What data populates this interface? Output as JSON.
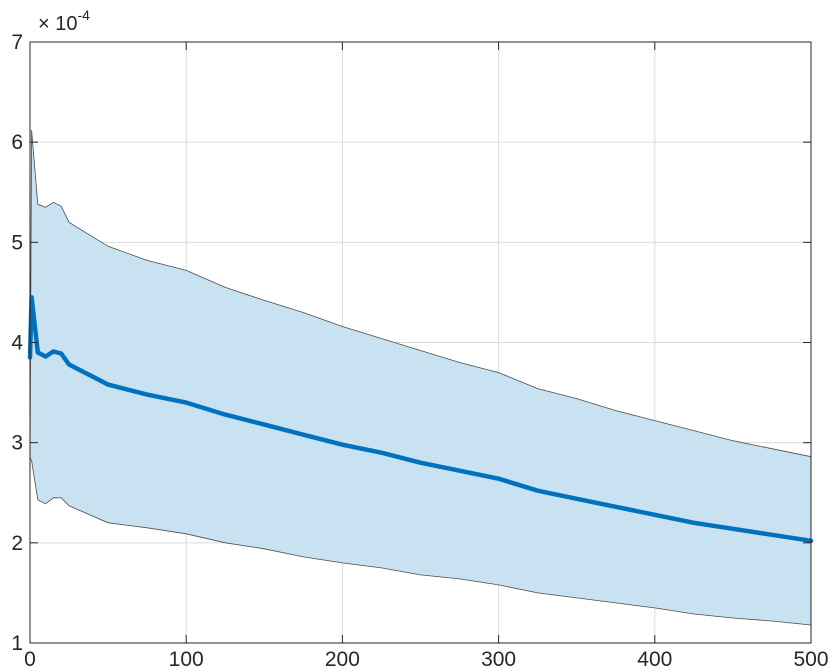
{
  "chart_data": {
    "type": "area",
    "x_ticks": [
      0,
      100,
      200,
      300,
      400,
      500
    ],
    "y_ticks": [
      1,
      2,
      3,
      4,
      5,
      6,
      7
    ],
    "y_multiplier_label": {
      "prefix": "× 10",
      "exponent": "-4"
    },
    "xlim": [
      0,
      500
    ],
    "ylim": [
      1,
      7
    ],
    "y_scale_factor": 0.0001,
    "grid": true,
    "legend": "none",
    "series": [
      {
        "role": "mean",
        "color": "#0072BD",
        "x": [
          0,
          1,
          5,
          10,
          15,
          20,
          25,
          50,
          75,
          100,
          125,
          150,
          175,
          200,
          225,
          250,
          275,
          300,
          325,
          350,
          375,
          400,
          425,
          450,
          475,
          500
        ],
        "y": [
          3.85,
          4.45,
          3.9,
          3.86,
          3.91,
          3.89,
          3.78,
          3.58,
          3.48,
          3.4,
          3.28,
          3.18,
          3.08,
          2.98,
          2.9,
          2.8,
          2.72,
          2.64,
          2.52,
          2.44,
          2.36,
          2.28,
          2.2,
          2.14,
          2.08,
          2.02
        ]
      },
      {
        "role": "upper-bound",
        "color": "#4d4d4d",
        "x": [
          0,
          1,
          5,
          10,
          15,
          20,
          25,
          50,
          75,
          100,
          125,
          150,
          175,
          200,
          225,
          250,
          275,
          300,
          325,
          350,
          375,
          400,
          425,
          450,
          475,
          500
        ],
        "y": [
          2.85,
          6.12,
          5.38,
          5.35,
          5.4,
          5.36,
          5.2,
          4.96,
          4.82,
          4.72,
          4.55,
          4.42,
          4.3,
          4.16,
          4.04,
          3.92,
          3.8,
          3.7,
          3.54,
          3.44,
          3.32,
          3.22,
          3.12,
          3.02,
          2.94,
          2.86
        ]
      },
      {
        "role": "lower-bound",
        "color": "#4d4d4d",
        "x": [
          0,
          1,
          5,
          10,
          15,
          20,
          25,
          50,
          75,
          100,
          125,
          150,
          175,
          200,
          225,
          250,
          275,
          300,
          325,
          350,
          375,
          400,
          425,
          450,
          475,
          500
        ],
        "y": [
          2.85,
          2.82,
          2.43,
          2.39,
          2.45,
          2.45,
          2.37,
          2.2,
          2.15,
          2.09,
          2.0,
          1.94,
          1.86,
          1.8,
          1.75,
          1.68,
          1.64,
          1.58,
          1.5,
          1.45,
          1.4,
          1.35,
          1.29,
          1.25,
          1.22,
          1.18
        ]
      }
    ],
    "band_fill_color": "#c9e2f2",
    "axis_color": "#262626",
    "grid_color": "#dcdcdc"
  }
}
